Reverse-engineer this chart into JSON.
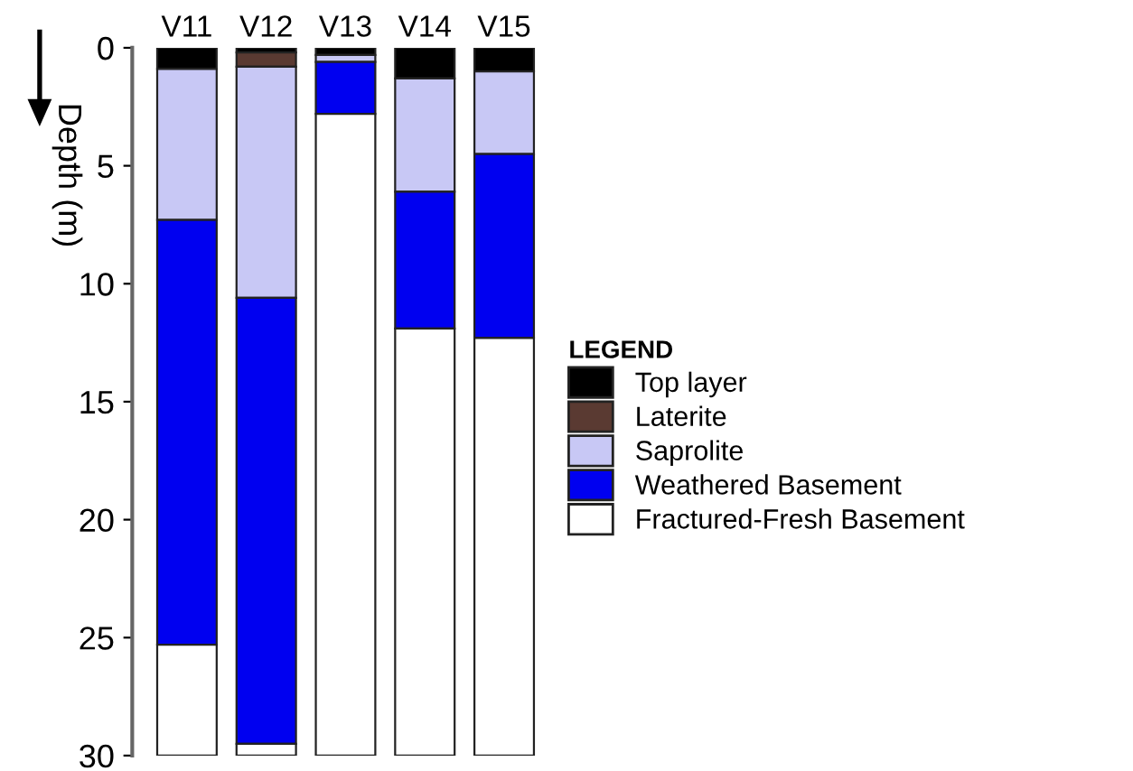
{
  "chart_data": {
    "type": "bar",
    "stacked": true,
    "ylabel": "Depth (m)",
    "legend_title": "LEGEND",
    "legend": "right",
    "grid": false,
    "categories": [
      "V11",
      "V12",
      "V13",
      "V14",
      "V15"
    ],
    "ylim": [
      30,
      0
    ],
    "yticks": [
      0,
      5,
      10,
      15,
      20,
      25,
      30
    ],
    "series": [
      {
        "name": "Top layer",
        "color": "#000000",
        "values": [
          0.9,
          0.2,
          0.3,
          1.3,
          1.0
        ]
      },
      {
        "name": "Laterite",
        "color": "#5a3a32",
        "values": [
          null,
          0.6,
          null,
          null,
          null
        ]
      },
      {
        "name": "Saprolite",
        "color": "#c8c8f5",
        "values": [
          6.4,
          9.8,
          0.3,
          4.8,
          3.5
        ]
      },
      {
        "name": "Weathered Basement",
        "color": "#0000f0",
        "values": [
          18.0,
          18.9,
          2.2,
          5.8,
          7.8
        ]
      },
      {
        "name": "Fractured-Fresh Basement",
        "color": "#ffffff",
        "values": [
          4.7,
          0.5,
          27.2,
          18.1,
          17.7
        ]
      }
    ]
  }
}
